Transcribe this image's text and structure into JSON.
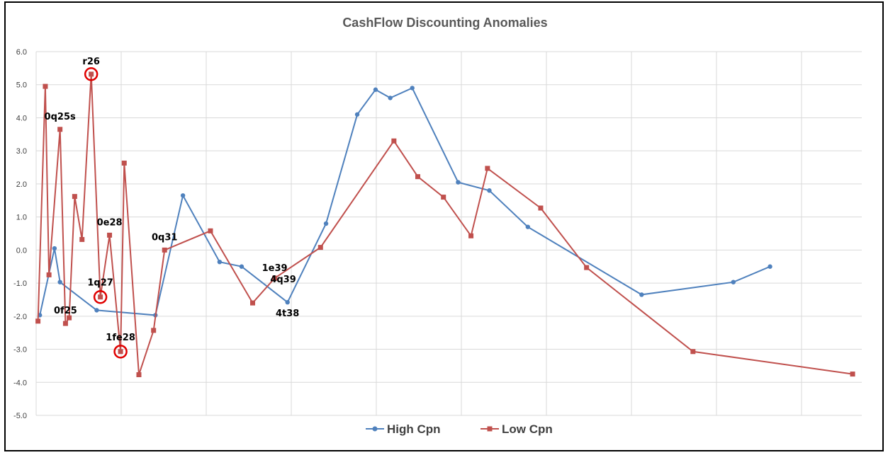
{
  "chart_data": {
    "type": "line",
    "title": "CashFlow Discounting Anomalies",
    "xlabel": "",
    "ylabel": "",
    "ylim": [
      -5,
      6
    ],
    "yticks": [
      "6.0",
      "5.0",
      "4.0",
      "3.0",
      "2.0",
      "1.0",
      "0.0",
      "-1.0",
      "-2.0",
      "-3.0",
      "-4.0",
      "-5.0"
    ],
    "grid": true,
    "legend_position": "bottom",
    "series": [
      {
        "name": "High Cpn",
        "color": "#4F81BD",
        "marker": "circle",
        "points": [
          [
            0.2,
            -1.97
          ],
          [
            1.0,
            0.05
          ],
          [
            1.3,
            -0.97
          ],
          [
            3.3,
            -1.82
          ],
          [
            6.5,
            -1.97
          ],
          [
            8.0,
            1.65
          ],
          [
            10.0,
            -0.36
          ],
          [
            11.2,
            -0.5
          ],
          [
            13.7,
            -1.58
          ],
          [
            15.8,
            0.8
          ],
          [
            17.5,
            4.1
          ],
          [
            18.5,
            4.85
          ],
          [
            19.3,
            4.6
          ],
          [
            20.5,
            4.9
          ],
          [
            23.0,
            2.05
          ],
          [
            24.7,
            1.8
          ],
          [
            26.8,
            0.7
          ],
          [
            33.0,
            -1.35
          ],
          [
            38.0,
            -0.97
          ],
          [
            40.0,
            -0.5
          ]
        ]
      },
      {
        "name": "Low Cpn",
        "color": "#C0504D",
        "marker": "square",
        "points": [
          [
            0.1,
            -2.15
          ],
          [
            0.5,
            4.95
          ],
          [
            0.7,
            -0.75
          ],
          [
            1.3,
            3.65
          ],
          [
            1.6,
            -2.22
          ],
          [
            1.8,
            -2.05
          ],
          [
            2.1,
            1.62
          ],
          [
            2.5,
            0.32
          ],
          [
            3.0,
            5.32
          ],
          [
            3.5,
            -1.42
          ],
          [
            4.0,
            0.45
          ],
          [
            4.6,
            -3.07
          ],
          [
            4.8,
            2.63
          ],
          [
            5.6,
            -3.77
          ],
          [
            6.4,
            -2.43
          ],
          [
            7.0,
            0.0
          ],
          [
            9.5,
            0.58
          ],
          [
            11.8,
            -1.6
          ],
          [
            13.0,
            -0.85
          ],
          [
            15.5,
            0.08
          ],
          [
            19.5,
            3.3
          ],
          [
            20.8,
            2.22
          ],
          [
            22.2,
            1.6
          ],
          [
            23.7,
            0.43
          ],
          [
            24.6,
            2.47
          ],
          [
            27.5,
            1.27
          ],
          [
            30.0,
            -0.53
          ],
          [
            35.8,
            -3.07
          ],
          [
            44.5,
            -3.75
          ]
        ]
      }
    ],
    "annotations": [
      {
        "text": "r26",
        "x": 3.0,
        "y": 5.32,
        "circled": true
      },
      {
        "text": "0q25s",
        "x": 1.3,
        "y": 3.65,
        "circled": false
      },
      {
        "text": "0e28",
        "x": 4.0,
        "y": 0.45,
        "circled": false
      },
      {
        "text": "0q31",
        "x": 7.0,
        "y": 0.0,
        "circled": false
      },
      {
        "text": "1q27",
        "x": 3.5,
        "y": -1.42,
        "circled": true
      },
      {
        "text": "0f25",
        "x": 1.6,
        "y": -2.22,
        "circled": false
      },
      {
        "text": "1fe28",
        "x": 4.6,
        "y": -3.07,
        "circled": true
      },
      {
        "text": "1e39",
        "x": 13.0,
        "y": -0.85,
        "circled": false
      },
      {
        "text": "4q39",
        "x": 13.0,
        "y": -0.85,
        "circled": false
      },
      {
        "text": "4t38",
        "x": 13.7,
        "y": -1.58,
        "circled": false
      }
    ]
  }
}
